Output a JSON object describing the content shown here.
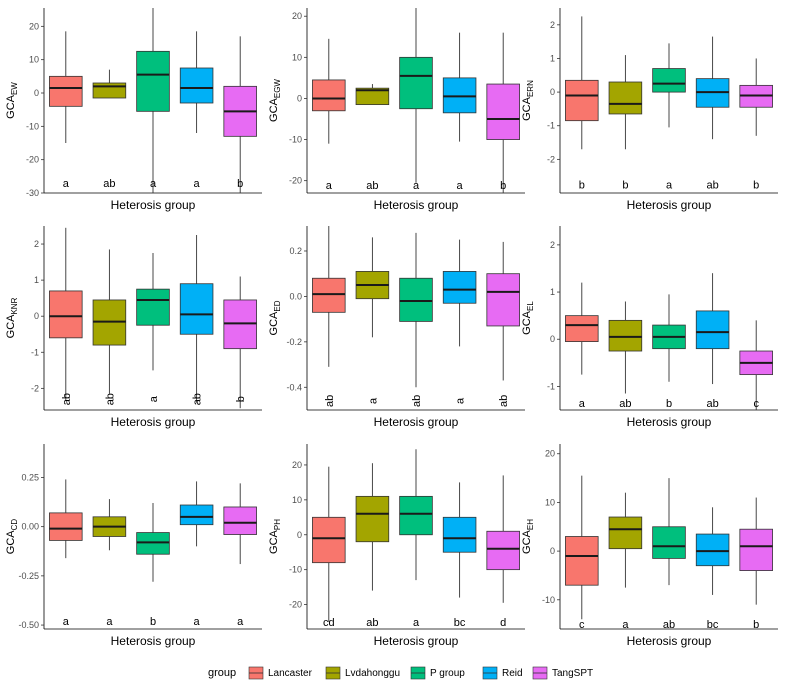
{
  "legend": {
    "title": "group",
    "entries": [
      {
        "name": "Lancaster",
        "color": "#F8766D"
      },
      {
        "name": "Lvdahonggu",
        "color": "#A3A500"
      },
      {
        "name": "P group",
        "color": "#00BF7D"
      },
      {
        "name": "Reid",
        "color": "#00B0F6"
      },
      {
        "name": "TangSPT",
        "color": "#E76BF3"
      }
    ]
  },
  "chart_data": [
    {
      "type": "box",
      "ylabel": "GCA",
      "ylabel_sub": "EW",
      "xlabel": "Heterosis group",
      "ylim": [
        -30,
        25.5
      ],
      "yticks": [
        20,
        10,
        0,
        -10,
        -20,
        -30
      ],
      "ytick_labels": [
        "20",
        "10",
        "0",
        "-10",
        "-20",
        "-30"
      ],
      "letter_y": -27,
      "letter_rotated": false,
      "boxes": [
        {
          "group": "Lancaster",
          "min": -15,
          "q1": -4,
          "median": 1.5,
          "q3": 5,
          "max": 18.5,
          "letter": "a"
        },
        {
          "group": "Lvdahonggu",
          "min": -1.5,
          "q1": -1.5,
          "median": 2,
          "q3": 3,
          "max": 7,
          "letter": "ab"
        },
        {
          "group": "P group",
          "min": -31,
          "q1": -5.5,
          "median": 5.5,
          "q3": 12.5,
          "max": 25.5,
          "letter": "a"
        },
        {
          "group": "Reid",
          "min": -12,
          "q1": -3,
          "median": 1.5,
          "q3": 7.5,
          "max": 18.5,
          "letter": "a"
        },
        {
          "group": "TangSPT",
          "min": -31,
          "q1": -13,
          "median": -5.5,
          "q3": 2,
          "max": 17,
          "letter": "b"
        }
      ]
    },
    {
      "type": "box",
      "ylabel": "GCA",
      "ylabel_sub": "EGW",
      "xlabel": "Heterosis group",
      "ylim": [
        -23,
        22
      ],
      "yticks": [
        20,
        10,
        0,
        -10,
        -20
      ],
      "ytick_labels": [
        "20",
        "10",
        "0",
        "-10",
        "-20"
      ],
      "letter_y": -21,
      "letter_rotated": false,
      "boxes": [
        {
          "group": "Lancaster",
          "min": -11,
          "q1": -3,
          "median": 0,
          "q3": 4.5,
          "max": 14.5,
          "letter": "a"
        },
        {
          "group": "Lvdahonggu",
          "min": -1.5,
          "q1": -1.5,
          "median": 2,
          "q3": 2.5,
          "max": 3.5,
          "letter": "ab"
        },
        {
          "group": "P group",
          "min": -20.5,
          "q1": -2.5,
          "median": 5.5,
          "q3": 10,
          "max": 22,
          "letter": "a"
        },
        {
          "group": "Reid",
          "min": -10.5,
          "q1": -3.5,
          "median": 0.5,
          "q3": 5,
          "max": 16,
          "letter": "a"
        },
        {
          "group": "TangSPT",
          "min": -23,
          "q1": -10,
          "median": -5,
          "q3": 3.5,
          "max": 16,
          "letter": "b"
        }
      ]
    },
    {
      "type": "box",
      "ylabel": "GCA",
      "ylabel_sub": "ERN",
      "xlabel": "Heterosis group",
      "ylim": [
        -3,
        2.5
      ],
      "yticks": [
        2,
        1,
        0,
        -1,
        -2
      ],
      "ytick_labels": [
        "2",
        "1",
        "0",
        "-1",
        "-2"
      ],
      "letter_y": -2.75,
      "letter_rotated": false,
      "boxes": [
        {
          "group": "Lancaster",
          "min": -1.7,
          "q1": -0.85,
          "median": -0.1,
          "q3": 0.35,
          "max": 2.25,
          "letter": "b"
        },
        {
          "group": "Lvdahonggu",
          "min": -1.7,
          "q1": -0.65,
          "median": -0.35,
          "q3": 0.3,
          "max": 1.1,
          "letter": "b"
        },
        {
          "group": "P group",
          "min": -1.05,
          "q1": 0,
          "median": 0.25,
          "q3": 0.7,
          "max": 1.45,
          "letter": "a"
        },
        {
          "group": "Reid",
          "min": -1.4,
          "q1": -0.45,
          "median": 0,
          "q3": 0.4,
          "max": 1.65,
          "letter": "ab"
        },
        {
          "group": "TangSPT",
          "min": -1.3,
          "q1": -0.45,
          "median": -0.1,
          "q3": 0.2,
          "max": 1.0,
          "letter": "b"
        }
      ]
    },
    {
      "type": "box",
      "ylabel": "GCA",
      "ylabel_sub": "KNR",
      "xlabel": "Heterosis group",
      "ylim": [
        -2.6,
        2.5
      ],
      "yticks": [
        2,
        1,
        0,
        -1,
        -2
      ],
      "ytick_labels": [
        "2",
        "1",
        "0",
        "-1",
        "-2"
      ],
      "letter_y": -2.3,
      "letter_rotated": true,
      "boxes": [
        {
          "group": "Lancaster",
          "min": -2.35,
          "q1": -0.6,
          "median": 0,
          "q3": 0.7,
          "max": 2.45,
          "letter": "ab"
        },
        {
          "group": "Lvdahonggu",
          "min": -2.15,
          "q1": -0.8,
          "median": -0.15,
          "q3": 0.45,
          "max": 1.85,
          "letter": "ab"
        },
        {
          "group": "P group",
          "min": -1.5,
          "q1": -0.25,
          "median": 0.45,
          "q3": 0.75,
          "max": 1.75,
          "letter": "a"
        },
        {
          "group": "Reid",
          "min": -2.4,
          "q1": -0.5,
          "median": 0.05,
          "q3": 0.9,
          "max": 2.25,
          "letter": "ab"
        },
        {
          "group": "TangSPT",
          "min": -2.55,
          "q1": -0.9,
          "median": -0.2,
          "q3": 0.45,
          "max": 1.1,
          "letter": "b"
        }
      ]
    },
    {
      "type": "box",
      "ylabel": "GCA",
      "ylabel_sub": "ED",
      "xlabel": "Heterosis group",
      "ylim": [
        -0.5,
        0.31
      ],
      "yticks": [
        0.2,
        0,
        -0.2,
        -0.4
      ],
      "ytick_labels": [
        "0.2",
        "0.0",
        "-0.2",
        "-0.4"
      ],
      "letter_y": -0.46,
      "letter_rotated": true,
      "boxes": [
        {
          "group": "Lancaster",
          "min": -0.31,
          "q1": -0.07,
          "median": 0.01,
          "q3": 0.08,
          "max": 0.31,
          "letter": "ab"
        },
        {
          "group": "Lvdahonggu",
          "min": -0.18,
          "q1": -0.01,
          "median": 0.05,
          "q3": 0.11,
          "max": 0.26,
          "letter": "a"
        },
        {
          "group": "P group",
          "min": -0.4,
          "q1": -0.11,
          "median": -0.02,
          "q3": 0.08,
          "max": 0.28,
          "letter": "ab"
        },
        {
          "group": "Reid",
          "min": -0.22,
          "q1": -0.03,
          "median": 0.03,
          "q3": 0.11,
          "max": 0.25,
          "letter": "a"
        },
        {
          "group": "TangSPT",
          "min": -0.37,
          "q1": -0.13,
          "median": 0.02,
          "q3": 0.1,
          "max": 0.24,
          "letter": "ab"
        }
      ]
    },
    {
      "type": "box",
      "ylabel": "GCA",
      "ylabel_sub": "EL",
      "xlabel": "Heterosis group",
      "ylim": [
        -1.5,
        2.4
      ],
      "yticks": [
        2,
        1,
        0,
        -1
      ],
      "ytick_labels": [
        "2",
        "1",
        "0",
        "-1"
      ],
      "letter_y": -1.35,
      "letter_rotated": false,
      "boxes": [
        {
          "group": "Lancaster",
          "min": -0.75,
          "q1": -0.05,
          "median": 0.3,
          "q3": 0.5,
          "max": 1.2,
          "letter": "a"
        },
        {
          "group": "Lvdahonggu",
          "min": -1.15,
          "q1": -0.25,
          "median": 0.05,
          "q3": 0.4,
          "max": 0.8,
          "letter": "ab"
        },
        {
          "group": "P group",
          "min": -0.9,
          "q1": -0.2,
          "median": 0.05,
          "q3": 0.3,
          "max": 0.95,
          "letter": "b"
        },
        {
          "group": "Reid",
          "min": -0.95,
          "q1": -0.2,
          "median": 0.15,
          "q3": 0.6,
          "max": 1.4,
          "letter": "ab"
        },
        {
          "group": "TangSPT",
          "min": -1.5,
          "q1": -0.75,
          "median": -0.5,
          "q3": -0.25,
          "max": 0.4,
          "letter": "c"
        }
      ]
    },
    {
      "type": "box",
      "ylabel": "GCA",
      "ylabel_sub": "CD",
      "xlabel": "Heterosis group",
      "ylim": [
        -0.52,
        0.42
      ],
      "yticks": [
        0.25,
        0,
        -0.25,
        -0.5
      ],
      "ytick_labels": [
        "0.25",
        "0.00",
        "-0.25",
        "-0.50"
      ],
      "letter_y": -0.48,
      "letter_rotated": false,
      "boxes": [
        {
          "group": "Lancaster",
          "min": -0.16,
          "q1": -0.07,
          "median": -0.01,
          "q3": 0.07,
          "max": 0.24,
          "letter": "a"
        },
        {
          "group": "Lvdahonggu",
          "min": -0.12,
          "q1": -0.05,
          "median": 0,
          "q3": 0.05,
          "max": 0.14,
          "letter": "a"
        },
        {
          "group": "P group",
          "min": -0.28,
          "q1": -0.14,
          "median": -0.08,
          "q3": -0.03,
          "max": 0.12,
          "letter": "b"
        },
        {
          "group": "Reid",
          "min": -0.1,
          "q1": 0.01,
          "median": 0.05,
          "q3": 0.11,
          "max": 0.23,
          "letter": "a"
        },
        {
          "group": "TangSPT",
          "min": -0.19,
          "q1": -0.04,
          "median": 0.02,
          "q3": 0.1,
          "max": 0.22,
          "letter": "a"
        }
      ]
    },
    {
      "type": "box",
      "ylabel": "GCA",
      "ylabel_sub": "PH",
      "xlabel": "Heterosis group",
      "ylim": [
        -27,
        26
      ],
      "yticks": [
        20,
        10,
        0,
        -10,
        -20
      ],
      "ytick_labels": [
        "20",
        "10",
        "0",
        "-10",
        "-20"
      ],
      "letter_y": -25,
      "letter_rotated": false,
      "boxes": [
        {
          "group": "Lancaster",
          "min": -25,
          "q1": -8,
          "median": -1,
          "q3": 5,
          "max": 19.5,
          "letter": "cd"
        },
        {
          "group": "Lvdahonggu",
          "min": -16,
          "q1": -2,
          "median": 6,
          "q3": 11,
          "max": 20.5,
          "letter": "ab"
        },
        {
          "group": "P group",
          "min": -13,
          "q1": 0,
          "median": 6,
          "q3": 11,
          "max": 24.5,
          "letter": "a"
        },
        {
          "group": "Reid",
          "min": -18,
          "q1": -5,
          "median": -1,
          "q3": 5,
          "max": 15,
          "letter": "bc"
        },
        {
          "group": "TangSPT",
          "min": -19.5,
          "q1": -10,
          "median": -4,
          "q3": 1,
          "max": 17,
          "letter": "d"
        }
      ]
    },
    {
      "type": "box",
      "ylabel": "GCA",
      "ylabel_sub": "EH",
      "xlabel": "Heterosis group",
      "ylim": [
        -16,
        22
      ],
      "yticks": [
        20,
        10,
        0,
        -10
      ],
      "ytick_labels": [
        "20",
        "10",
        "0",
        "-10"
      ],
      "letter_y": -15,
      "letter_rotated": false,
      "boxes": [
        {
          "group": "Lancaster",
          "min": -14,
          "q1": -7,
          "median": -1,
          "q3": 3,
          "max": 15.5,
          "letter": "c"
        },
        {
          "group": "Lvdahonggu",
          "min": -7.5,
          "q1": 0.5,
          "median": 4.5,
          "q3": 7,
          "max": 12,
          "letter": "a"
        },
        {
          "group": "P group",
          "min": -7,
          "q1": -1.5,
          "median": 1,
          "q3": 5,
          "max": 15,
          "letter": "ab"
        },
        {
          "group": "Reid",
          "min": -9,
          "q1": -3,
          "median": 0,
          "q3": 3.5,
          "max": 9,
          "letter": "bc"
        },
        {
          "group": "TangSPT",
          "min": -11,
          "q1": -4,
          "median": 1,
          "q3": 4.5,
          "max": 11,
          "letter": "b"
        }
      ]
    }
  ]
}
